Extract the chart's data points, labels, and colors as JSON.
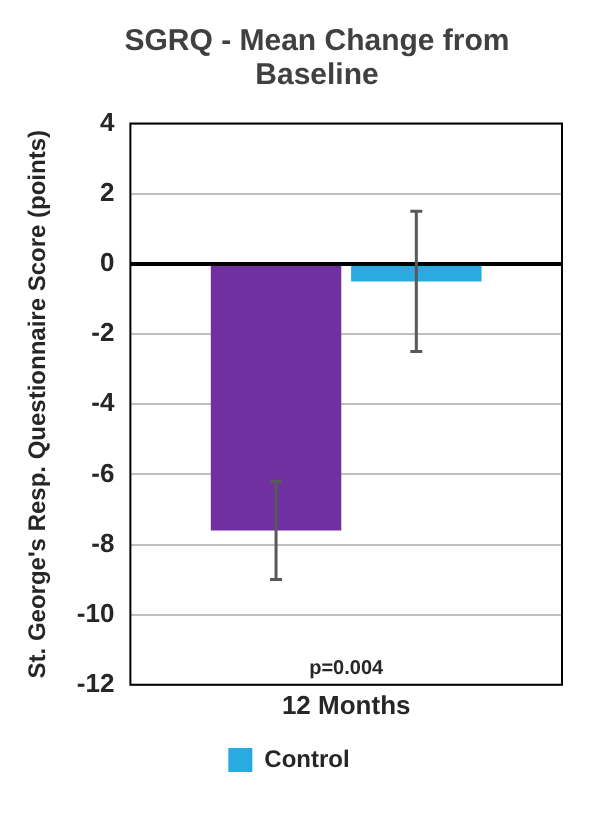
{
  "chart_data": {
    "type": "bar",
    "title": "SGRQ - Mean Change from Baseline",
    "ylabel": "St. George's Resp. Questionnaire Score (points)",
    "categories": [
      "12 Months"
    ],
    "series": [
      {
        "color": "#7030a0",
        "values": [
          -7.6
        ],
        "errors": [
          1.4
        ]
      },
      {
        "name": "Control",
        "color": "#29abe2",
        "values": [
          -0.5
        ],
        "errors": [
          [
            -2.5,
            1.5
          ]
        ]
      }
    ],
    "ylim": [
      -12,
      4
    ],
    "yticks": [
      -12,
      -10,
      -8,
      -6,
      -4,
      -2,
      0,
      2,
      4
    ],
    "grid": "y",
    "legend": "bottom",
    "ref_lines": [
      {
        "axis": "y",
        "value": 0,
        "color": "#000000"
      }
    ],
    "annotations": [
      "p=0.004"
    ]
  }
}
